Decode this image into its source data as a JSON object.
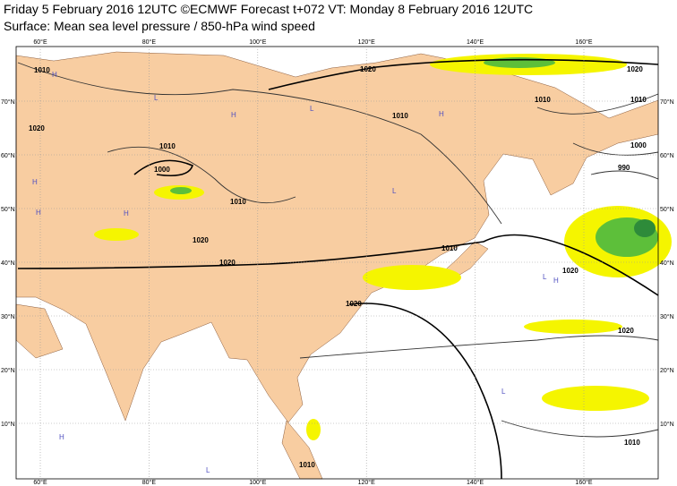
{
  "header": {
    "line1": "Friday 5 February 2016 12UTC ©ECMWF Forecast t+072 VT: Monday 8 February 2016 12UTC",
    "line2": "Surface: Mean sea level pressure / 850-hPa wind speed"
  },
  "map": {
    "longitudes": [
      "60°E",
      "80°E",
      "100°E",
      "120°E",
      "140°E",
      "160°E"
    ],
    "latitudes": [
      "70°N",
      "60°N",
      "50°N",
      "40°N",
      "30°N",
      "20°N",
      "10°N"
    ],
    "isobar_labels": [
      "1010",
      "1020",
      "1010",
      "1000",
      "1010",
      "1020",
      "1020",
      "1020",
      "1010",
      "1010",
      "1020",
      "1010",
      "1000",
      "990",
      "1010",
      "1020",
      "1020",
      "1020",
      "1010",
      "1010"
    ],
    "pressure_centers": [
      "H",
      "L",
      "H",
      "L",
      "H",
      "L",
      "H",
      "H",
      "L",
      "H",
      "L",
      "H",
      "L",
      "H"
    ]
  }
}
